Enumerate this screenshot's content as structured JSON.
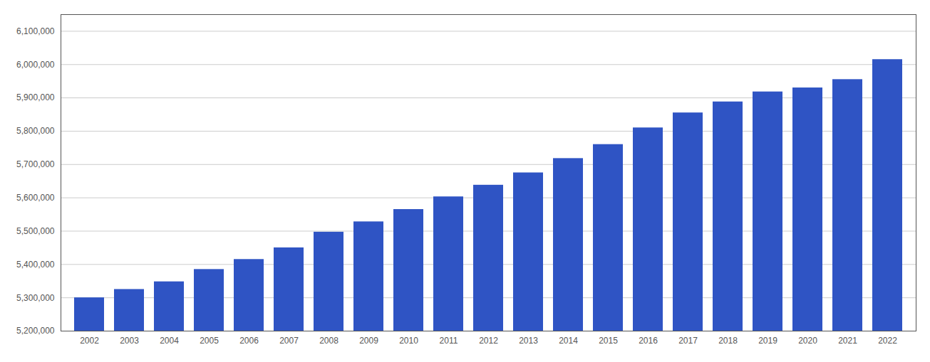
{
  "chart_data": {
    "type": "bar",
    "categories": [
      "2002",
      "2003",
      "2004",
      "2005",
      "2006",
      "2007",
      "2008",
      "2009",
      "2010",
      "2011",
      "2012",
      "2013",
      "2014",
      "2015",
      "2016",
      "2017",
      "2018",
      "2019",
      "2020",
      "2021",
      "2022"
    ],
    "values": [
      5300000,
      5325000,
      5348000,
      5385000,
      5415000,
      5450000,
      5497000,
      5528000,
      5565000,
      5603000,
      5638000,
      5675000,
      5718000,
      5760000,
      5810000,
      5855000,
      5888000,
      5918000,
      5930000,
      5955000,
      6015000
    ],
    "color": "#2F54C4",
    "ylim": [
      5200000,
      6150000
    ],
    "yticks": [
      {
        "value": 5200000,
        "label": "5,200,000"
      },
      {
        "value": 5300000,
        "label": "5,300,000"
      },
      {
        "value": 5400000,
        "label": "5,400,000"
      },
      {
        "value": 5500000,
        "label": "5,500,000"
      },
      {
        "value": 5600000,
        "label": "5,600,000"
      },
      {
        "value": 5700000,
        "label": "5,700,000"
      },
      {
        "value": 5800000,
        "label": "5,800,000"
      },
      {
        "value": 5900000,
        "label": "5,900,000"
      },
      {
        "value": 6000000,
        "label": "6,000,000"
      },
      {
        "value": 6100000,
        "label": "6,100,000"
      }
    ],
    "grid": true
  }
}
